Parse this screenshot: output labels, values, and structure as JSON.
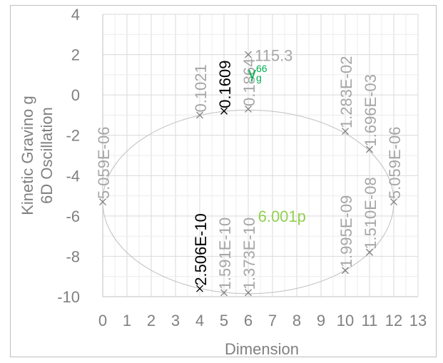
{
  "chart_data": {
    "type": "scatter",
    "title": "",
    "xlabel": "Dimension",
    "ylabel_lines": [
      "Kinetic Gravino g",
      "6D Oscillation"
    ],
    "xlim": [
      0,
      13
    ],
    "ylim": [
      -10,
      4
    ],
    "x_ticks": [
      "0",
      "1",
      "2",
      "3",
      "4",
      "5",
      "6",
      "7",
      "8",
      "9",
      "10",
      "11",
      "12",
      "13"
    ],
    "y_ticks": [
      "4",
      "2",
      "0",
      "-2",
      "-4",
      "-6",
      "-8",
      "-10"
    ],
    "grid": true,
    "legend": "none",
    "ellipse": {
      "cx": 6,
      "cy": -5.3,
      "rx": 6,
      "ry": 4.55,
      "color": "#c0c0c0"
    },
    "points": [
      {
        "x": 0,
        "y": -5.3,
        "label": "5.059E-06",
        "color": "#a6a6a6",
        "rotate": true
      },
      {
        "x": 4,
        "y": -1.0,
        "label": "0.1021",
        "color": "#a6a6a6",
        "rotate": true
      },
      {
        "x": 4,
        "y": -9.6,
        "label": "2.506E-10",
        "color": "#000000",
        "rotate": true
      },
      {
        "x": 5,
        "y": -0.8,
        "label": "0.1609",
        "color": "#000000",
        "rotate": true
      },
      {
        "x": 5,
        "y": -9.8,
        "label": "1.591E-10",
        "color": "#a6a6a6",
        "rotate": true
      },
      {
        "x": 6,
        "y": 2.0,
        "label": "115.3",
        "color": "#a6a6a6",
        "rotate": false
      },
      {
        "x": 6,
        "y": -0.7,
        "label": "0.1864",
        "color": "#a6a6a6",
        "rotate": true
      },
      {
        "x": 6,
        "y": -9.8,
        "label": "1.373E-10",
        "color": "#a6a6a6",
        "rotate": true
      },
      {
        "x": 10,
        "y": -1.8,
        "label": "1.283E-02",
        "color": "#a6a6a6",
        "rotate": true
      },
      {
        "x": 10,
        "y": -8.7,
        "label": "1.995E-09",
        "color": "#a6a6a6",
        "rotate": true
      },
      {
        "x": 11,
        "y": -2.7,
        "label": "1.696E-03",
        "color": "#a6a6a6",
        "rotate": true
      },
      {
        "x": 11,
        "y": -7.8,
        "label": "1.510E-08",
        "color": "#a6a6a6",
        "rotate": true
      },
      {
        "x": 12,
        "y": -5.3,
        "label": "5.059E-06",
        "color": "#a6a6a6",
        "rotate": true
      }
    ],
    "annotations": [
      {
        "text": "6.001p",
        "x": 6.4,
        "y": -6.0,
        "color": "#92d050"
      },
      {
        "text": "γ",
        "sub": "g",
        "sup": "66",
        "x": 6.0,
        "y": 1.1,
        "color": "#00b050"
      }
    ]
  }
}
